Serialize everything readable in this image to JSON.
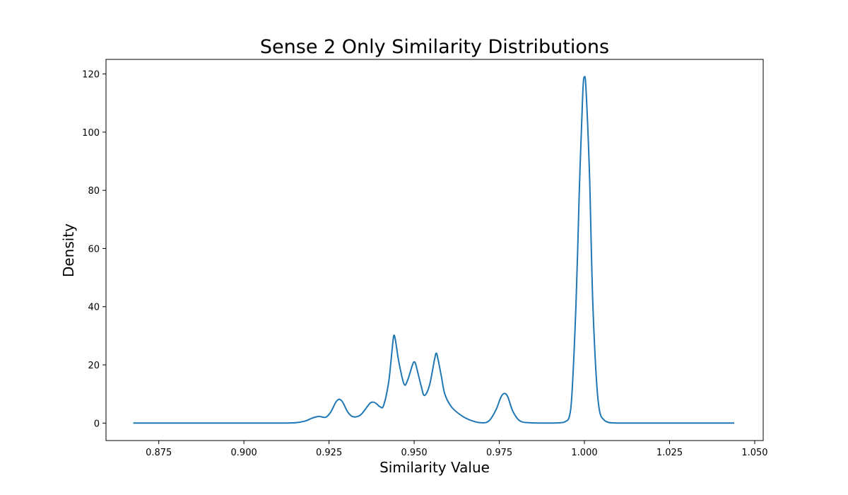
{
  "chart_data": {
    "type": "line",
    "title": "Sense 2 Only Similarity Distributions",
    "xlabel": "Similarity Value",
    "ylabel": "Density",
    "xlim": [
      0.8595,
      1.0525
    ],
    "ylim": [
      -6,
      125
    ],
    "x_ticks": [
      0.875,
      0.9,
      0.925,
      0.95,
      0.975,
      1.0,
      1.025,
      1.05
    ],
    "x_tick_labels": [
      "0.875",
      "0.900",
      "0.925",
      "0.950",
      "0.975",
      "1.000",
      "1.025",
      "1.050"
    ],
    "y_ticks": [
      0,
      20,
      40,
      60,
      80,
      100,
      120
    ],
    "y_tick_labels": [
      "0",
      "20",
      "40",
      "60",
      "80",
      "100",
      "120"
    ],
    "grid": false,
    "series": [
      {
        "color": "#1f77b4",
        "x": [
          0.8675,
          0.88,
          0.9,
          0.91,
          0.915,
          0.918,
          0.92,
          0.922,
          0.924,
          0.9255,
          0.927,
          0.928,
          0.929,
          0.9305,
          0.932,
          0.934,
          0.9355,
          0.937,
          0.938,
          0.939,
          0.94,
          0.941,
          0.9425,
          0.9435,
          0.944,
          0.9445,
          0.9455,
          0.947,
          0.948,
          0.9495,
          0.95,
          0.9505,
          0.952,
          0.953,
          0.9545,
          0.956,
          0.9565,
          0.957,
          0.958,
          0.959,
          0.961,
          0.964,
          0.967,
          0.97,
          0.972,
          0.974,
          0.9755,
          0.9765,
          0.9775,
          0.979,
          0.981,
          0.984,
          0.99,
          0.994,
          0.996,
          0.9975,
          0.9985,
          0.9995,
          1.0,
          1.0005,
          1.0015,
          1.0025,
          1.004,
          1.006,
          1.01,
          1.02,
          1.044
        ],
        "y": [
          0,
          0,
          0,
          0,
          0.1,
          0.7,
          1.7,
          2.3,
          2.0,
          3.8,
          7.2,
          8.2,
          7.2,
          3.8,
          2.2,
          2.6,
          4.5,
          6.8,
          7.2,
          6.6,
          5.6,
          6.0,
          14.0,
          25.0,
          30.0,
          28.5,
          21.0,
          13.5,
          14.5,
          20.0,
          21.0,
          20.0,
          13.0,
          9.5,
          13.0,
          22.0,
          24.0,
          22.0,
          16.0,
          10.0,
          5.5,
          2.5,
          0.8,
          0.1,
          0.8,
          4.5,
          9.0,
          10.2,
          9.0,
          4.0,
          0.8,
          0.1,
          0,
          0.3,
          5.0,
          40.0,
          80.0,
          113.0,
          119.0,
          114.0,
          85.0,
          40.0,
          8.0,
          0.8,
          0,
          0,
          0
        ]
      }
    ]
  }
}
